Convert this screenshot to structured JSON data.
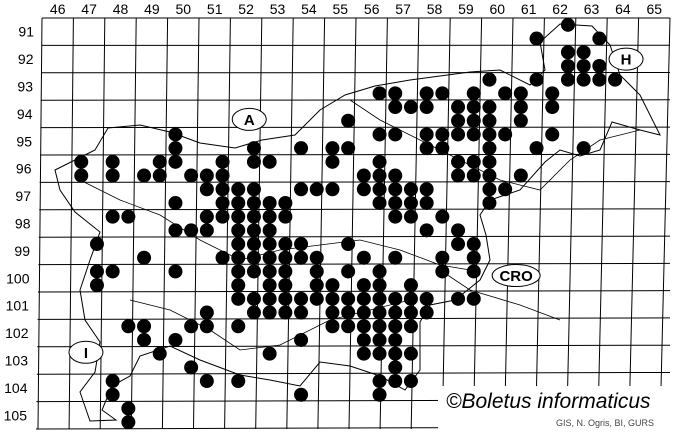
{
  "map": {
    "columns": [
      "46",
      "47",
      "48",
      "49",
      "50",
      "51",
      "52",
      "53",
      "54",
      "55",
      "56",
      "57",
      "58",
      "59",
      "60",
      "61",
      "62",
      "63",
      "64",
      "65"
    ],
    "rows": [
      "91",
      "92",
      "93",
      "94",
      "95",
      "96",
      "97",
      "98",
      "99",
      "100",
      "101",
      "102",
      "103",
      "104",
      "105"
    ],
    "region_labels": [
      {
        "text": "A",
        "col": 52.6,
        "row": 94.7
      },
      {
        "text": "H",
        "col": 64.6,
        "row": 92.5
      },
      {
        "text": "CRO",
        "col": 61.1,
        "row": 100.4
      },
      {
        "text": "I",
        "col": 47.4,
        "row": 103.2
      }
    ],
    "copyright": "©Boletus informaticus",
    "credit": "GIS, N. Ogris, BI, GURS",
    "dot_color": "#000000",
    "records": [
      {
        "row": 91.25,
        "cols": [
          62.75
        ]
      },
      {
        "row": 91.75,
        "cols": [
          61.75,
          63.75
        ]
      },
      {
        "row": 92.25,
        "cols": [
          62.75,
          63.25
        ]
      },
      {
        "row": 92.75,
        "cols": [
          62.75,
          63.25,
          63.75
        ]
      },
      {
        "row": 93.25,
        "cols": [
          60.25,
          61.75,
          62.75,
          63.25,
          63.75,
          64.25
        ]
      },
      {
        "row": 93.75,
        "cols": [
          56.75,
          57.25,
          58.25,
          58.75,
          59.75,
          60.75,
          61.25,
          62.25
        ]
      },
      {
        "row": 94.25,
        "cols": [
          57.25,
          57.75,
          58.25,
          59.25,
          59.75,
          60.25,
          61.25,
          62.25
        ]
      },
      {
        "row": 94.75,
        "cols": [
          55.75,
          59.25,
          59.75,
          60.25,
          61.25
        ]
      },
      {
        "row": 95.25,
        "cols": [
          50.25,
          56.75,
          57.25,
          58.25,
          58.75,
          59.25,
          59.75,
          60.25,
          60.75,
          62.25
        ]
      },
      {
        "row": 95.75,
        "cols": [
          50.25,
          52.75,
          54.25,
          55.25,
          55.75,
          58.25,
          58.75,
          60.25,
          61.75,
          63.25
        ]
      },
      {
        "row": 96.25,
        "cols": [
          47.25,
          48.25,
          49.75,
          50.25,
          51.75,
          52.75,
          53.25,
          55.25,
          56.75,
          59.25,
          59.75,
          60.25
        ]
      },
      {
        "row": 96.75,
        "cols": [
          47.25,
          48.25,
          49.25,
          49.75,
          50.75,
          51.25,
          51.75,
          56.25,
          56.75,
          57.25,
          59.25,
          59.75,
          60.25,
          61.25
        ]
      },
      {
        "row": 97.25,
        "cols": [
          51.25,
          51.75,
          52.25,
          52.75,
          54.25,
          54.75,
          55.25,
          56.25,
          56.75,
          57.25,
          57.75,
          58.25,
          60.25,
          60.75
        ]
      },
      {
        "row": 97.75,
        "cols": [
          50.25,
          51.75,
          52.25,
          52.75,
          53.25,
          53.75,
          56.75,
          57.25,
          57.75,
          58.25,
          60.25
        ]
      },
      {
        "row": 98.25,
        "cols": [
          48.25,
          48.75,
          51.25,
          51.75,
          52.25,
          52.75,
          53.25,
          53.75,
          57.25,
          57.75,
          58.75
        ]
      },
      {
        "row": 98.75,
        "cols": [
          50.25,
          50.75,
          51.25,
          52.25,
          52.75,
          53.25,
          58.25,
          59.25
        ]
      },
      {
        "row": 99.25,
        "cols": [
          47.75,
          52.25,
          52.75,
          53.25,
          53.75,
          54.25,
          55.75,
          59.25,
          59.75
        ]
      },
      {
        "row": 99.75,
        "cols": [
          49.25,
          51.75,
          52.25,
          52.75,
          53.25,
          53.75,
          54.25,
          54.75,
          56.25,
          57.25,
          58.75,
          59.75
        ]
      },
      {
        "row": 100.25,
        "cols": [
          47.75,
          48.25,
          50.25,
          52.25,
          52.75,
          53.25,
          53.75,
          54.75,
          55.75,
          56.75,
          58.75,
          59.75
        ]
      },
      {
        "row": 100.75,
        "cols": [
          47.75,
          52.25,
          53.25,
          53.75,
          54.75,
          55.25,
          56.25,
          56.75,
          57.75
        ]
      },
      {
        "row": 101.25,
        "cols": [
          52.25,
          52.75,
          53.25,
          53.75,
          54.25,
          54.75,
          55.25,
          55.75,
          56.25,
          56.75,
          57.25,
          57.75,
          58.25,
          59.25,
          59.75
        ]
      },
      {
        "row": 101.75,
        "cols": [
          51.25,
          52.75,
          53.25,
          53.75,
          54.25,
          55.25,
          55.75,
          56.25,
          56.75,
          57.25,
          57.75,
          58.25
        ]
      },
      {
        "row": 102.25,
        "cols": [
          48.75,
          49.25,
          50.75,
          51.25,
          52.25,
          55.25,
          55.75,
          56.25,
          56.75,
          57.25,
          57.75
        ]
      },
      {
        "row": 102.75,
        "cols": [
          49.25,
          50.25,
          54.25,
          56.25,
          56.75,
          57.25
        ]
      },
      {
        "row": 103.25,
        "cols": [
          49.75,
          53.25,
          56.25,
          56.75,
          57.25,
          57.75
        ]
      },
      {
        "row": 103.75,
        "cols": [
          50.75,
          57.25
        ]
      },
      {
        "row": 104.25,
        "cols": [
          48.25,
          51.25,
          52.25,
          56.75,
          57.25,
          57.75
        ]
      },
      {
        "row": 104.75,
        "cols": [
          48.25,
          54.25,
          56.75
        ]
      },
      {
        "row": 105.25,
        "cols": [
          48.75
        ]
      },
      {
        "row": 105.75,
        "cols": [
          48.75
        ]
      }
    ]
  }
}
